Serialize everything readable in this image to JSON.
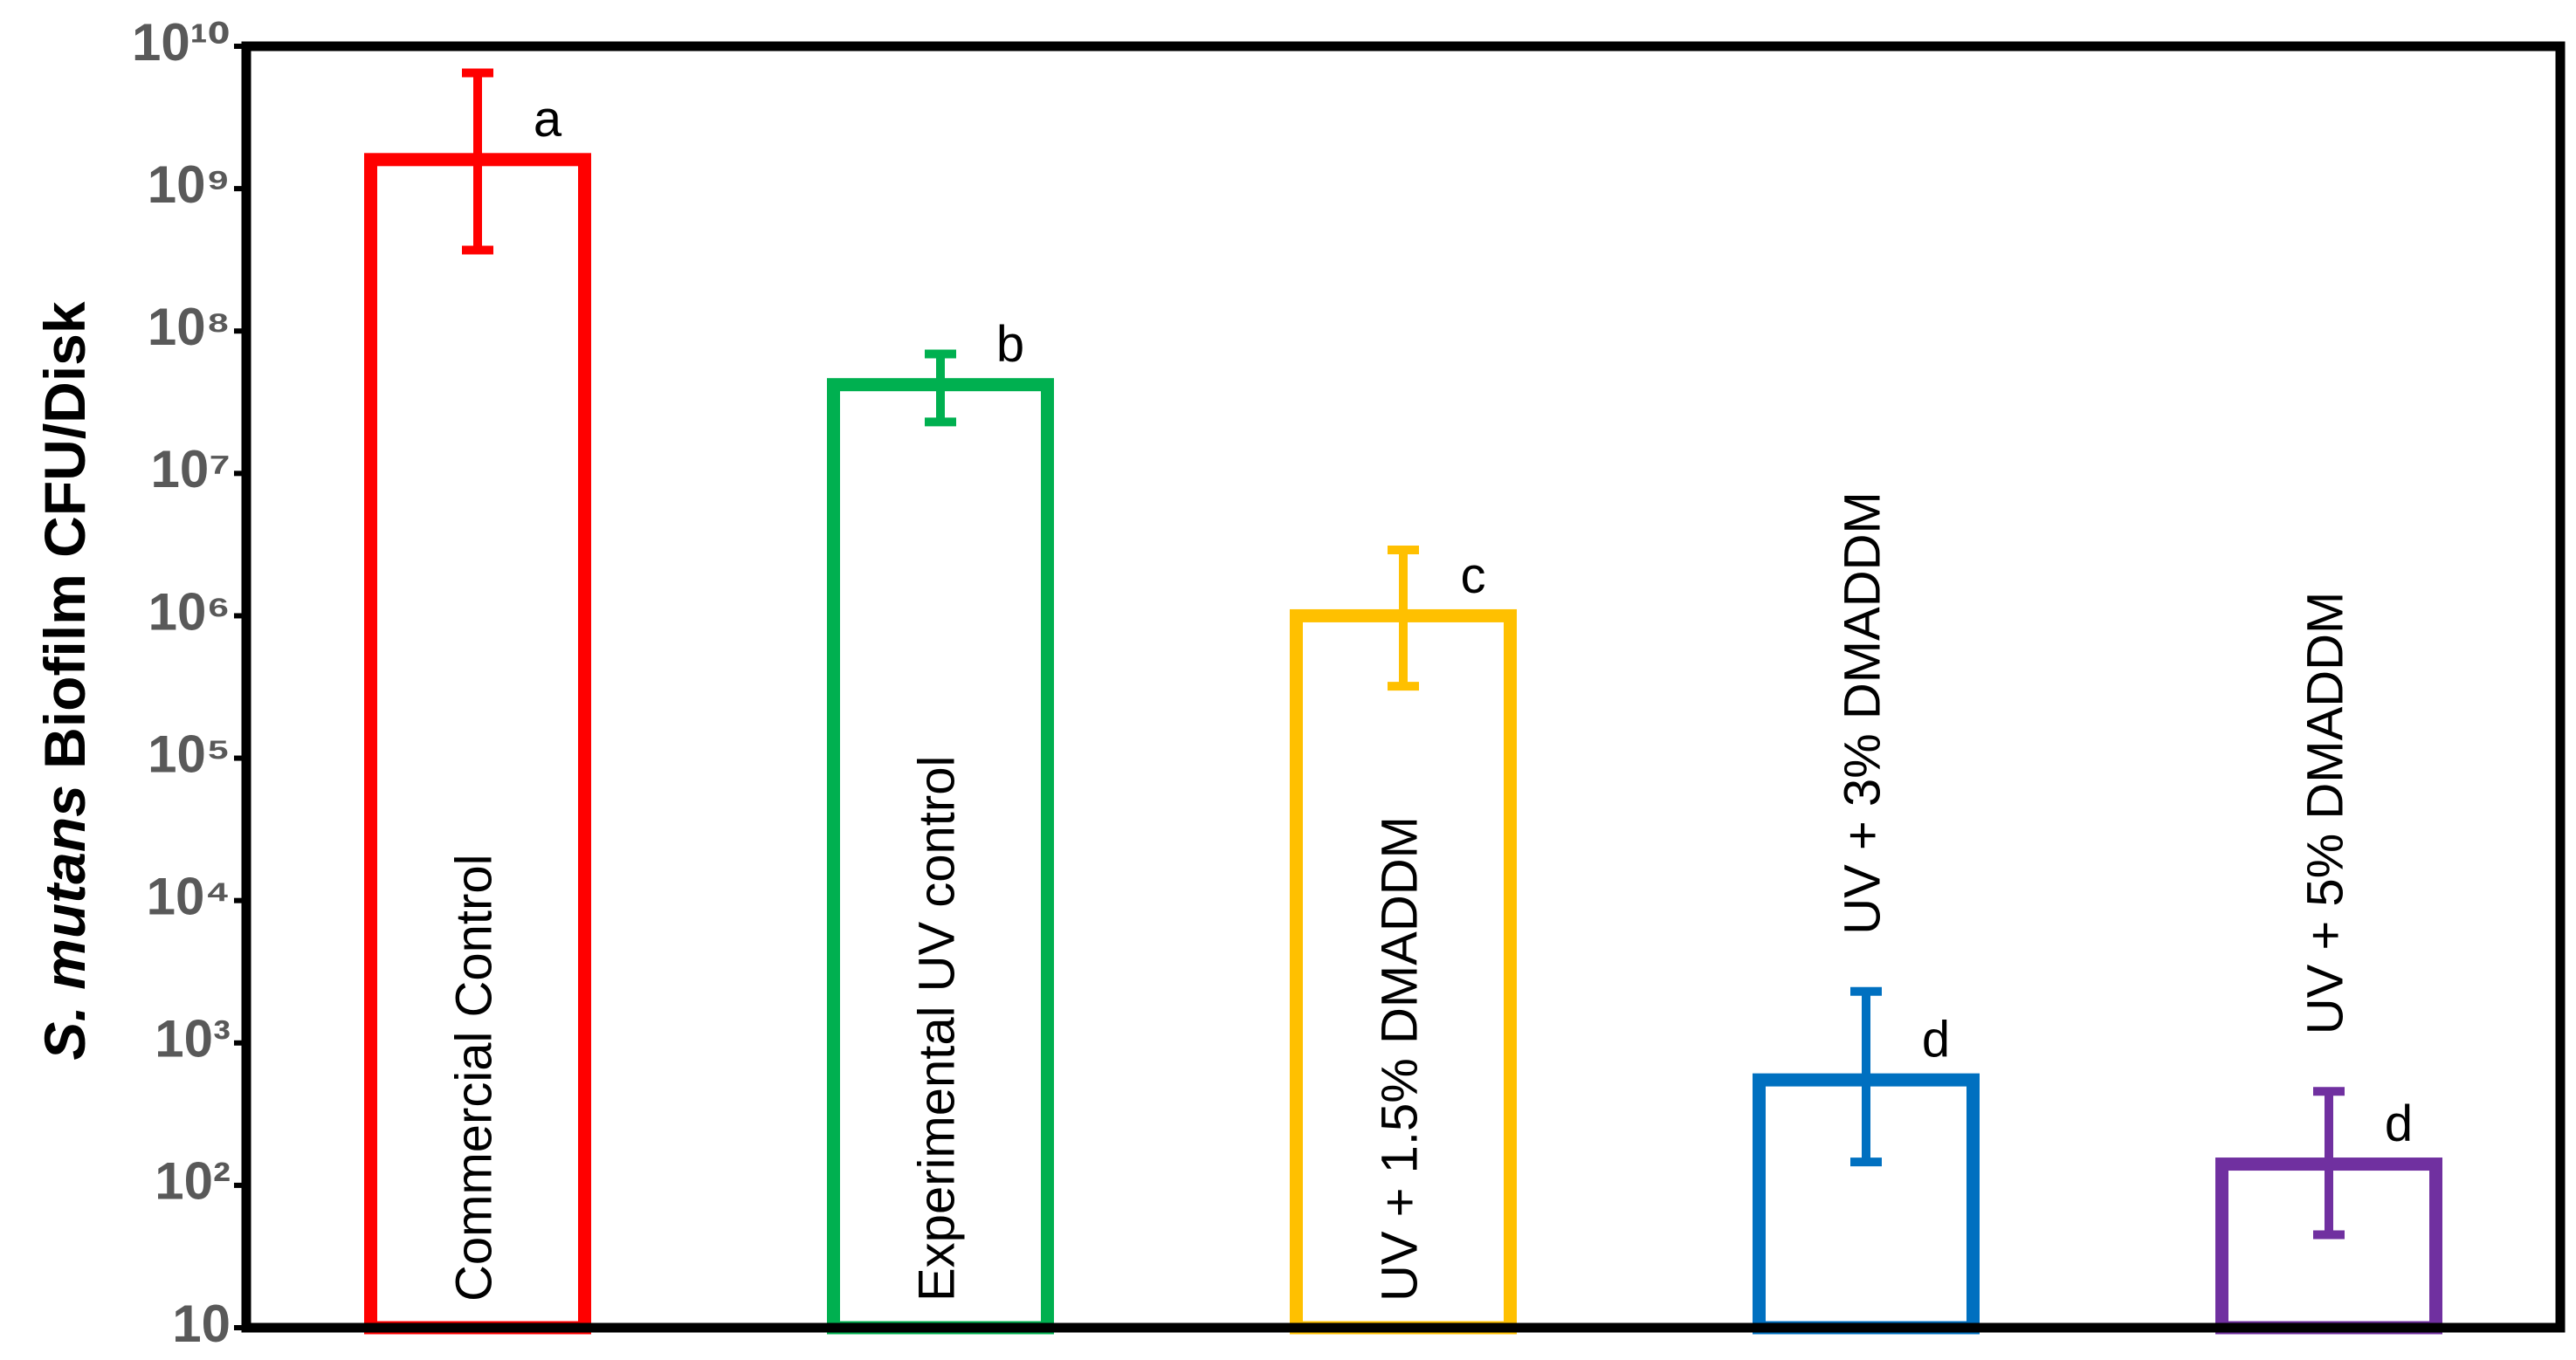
{
  "chart_data": {
    "type": "bar",
    "log_scale": true,
    "ylabel_italic": "S. mutans",
    "ylabel": "Biofilm CFU/Disk",
    "categories": [
      "Commercial Control",
      "Experimental UV control",
      "UV + 1.5% DMADDM",
      "UV + 3% DMADDM",
      "UV + 5% DMADDM"
    ],
    "values": [
      1600000000,
      42000000,
      1000000,
      550,
      141
    ],
    "error_lower": [
      370000000,
      23000000,
      320000,
      146,
      45
    ],
    "error_upper": [
      6500000000,
      69000000,
      2900000,
      2300,
      457
    ],
    "annotations": [
      "a",
      "b",
      "c",
      "d",
      "d"
    ],
    "colors": [
      "#ff0000",
      "#00b050",
      "#ffc000",
      "#0070c0",
      "#7030a0"
    ],
    "ylim": [
      10,
      10000000000
    ],
    "yticks": [
      10,
      {
        "value": 100,
        "label": "10²"
      },
      {
        "value": 1000,
        "label": "10³"
      },
      {
        "value": 10000,
        "label": "10⁴"
      },
      {
        "value": 100000,
        "label": "10⁵"
      },
      {
        "value": 1000000,
        "label": "10⁶"
      },
      {
        "value": 10000000,
        "label": "10⁷"
      },
      {
        "value": 100000000,
        "label": "10⁸"
      },
      {
        "value": 1000000000,
        "label": "10⁹"
      },
      {
        "value": 10000000000,
        "label": "10¹⁰"
      }
    ]
  }
}
